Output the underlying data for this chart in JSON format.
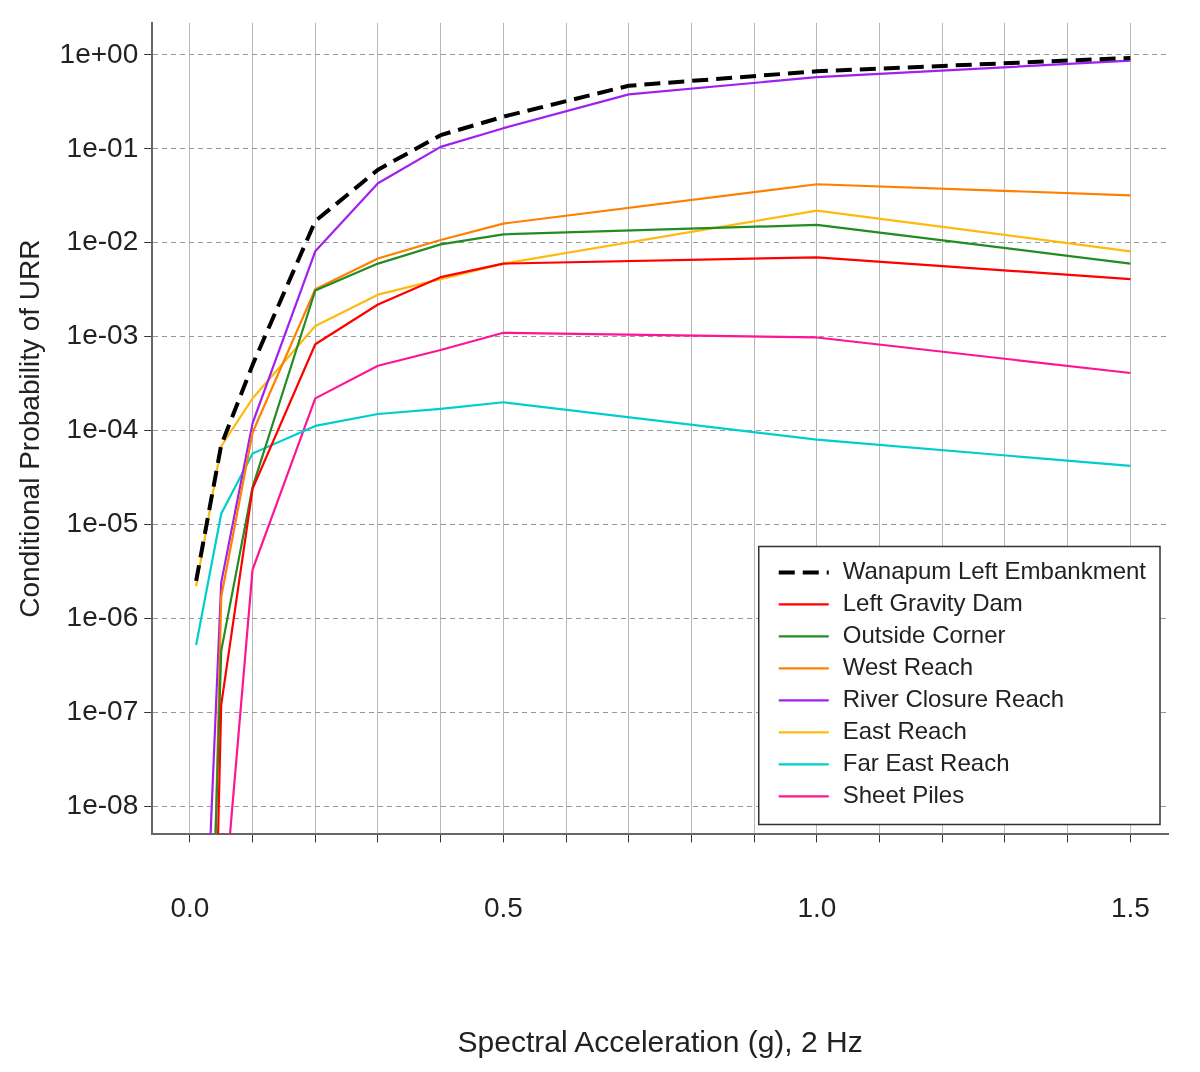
{
  "chart_data": {
    "type": "line",
    "xlabel": "Spectral Acceleration (g), 2 Hz",
    "ylabel": "Conditional Probability of URR",
    "log": "y",
    "grid": true,
    "legend": "bottom right",
    "marker": "none",
    "xlim": [
      -0.06,
      1.56
    ],
    "ylim": [
      5e-09,
      2.2
    ],
    "xticks": [
      {
        "value": 0,
        "label": "0.0"
      },
      {
        "value": 0.1,
        "label": null
      },
      {
        "value": 0.2,
        "label": null
      },
      {
        "value": 0.3,
        "label": null
      },
      {
        "value": 0.4,
        "label": null
      },
      {
        "value": 0.5,
        "label": "0.5"
      },
      {
        "value": 0.6,
        "label": null
      },
      {
        "value": 0.7,
        "label": null
      },
      {
        "value": 0.8,
        "label": null
      },
      {
        "value": 0.9,
        "label": null
      },
      {
        "value": 1,
        "label": "1.0"
      },
      {
        "value": 1.1,
        "label": null
      },
      {
        "value": 1.2,
        "label": null
      },
      {
        "value": 1.3,
        "label": null
      },
      {
        "value": 1.4,
        "label": null
      },
      {
        "value": 1.5,
        "label": "1.5"
      }
    ],
    "yticks": [
      {
        "value": 1e-08,
        "label": "1e-08"
      },
      {
        "value": 1e-07,
        "label": "1e-07"
      },
      {
        "value": 1e-06,
        "label": "1e-06"
      },
      {
        "value": 1e-05,
        "label": "1e-05"
      },
      {
        "value": 0.0001,
        "label": "1e-04"
      },
      {
        "value": 0.001,
        "label": "1e-03"
      },
      {
        "value": 0.01,
        "label": "1e-02"
      },
      {
        "value": 0.1,
        "label": "1e-01"
      },
      {
        "value": 1,
        "label": "1e+00"
      }
    ],
    "series": [
      {
        "name": "Wanapum Left Embankment",
        "color": "#000000",
        "line_style": "dashed",
        "x": [
          0.01,
          0.05,
          0.1,
          0.2,
          0.3,
          0.4,
          0.5,
          0.7,
          1.0,
          1.5
        ],
        "values": [
          2.5e-06,
          7e-05,
          0.0005,
          0.017,
          0.06,
          0.14,
          0.22,
          0.47,
          0.67,
          0.93
        ]
      },
      {
        "name": "Left Gravity Dam",
        "color": "#ff0000",
        "x": [
          0.045,
          0.05,
          0.1,
          0.2,
          0.3,
          0.4,
          0.5,
          1.0,
          1.5
        ],
        "values": [
          5e-09,
          1.2e-07,
          2.4e-05,
          0.00083,
          0.0022,
          0.0043,
          0.006,
          0.007,
          0.0041
        ]
      },
      {
        "name": "Outside Corner",
        "color": "#228b22",
        "x": [
          0.041,
          0.05,
          0.1,
          0.2,
          0.3,
          0.4,
          0.5,
          1.0,
          1.5
        ],
        "values": [
          5e-09,
          4.5e-07,
          2.5e-05,
          0.0031,
          0.006,
          0.0096,
          0.0123,
          0.0155,
          0.006
        ]
      },
      {
        "name": "West Reach",
        "color": "#ff7f00",
        "x": [
          0.041,
          0.05,
          0.1,
          0.2,
          0.3,
          0.4,
          0.5,
          1.0,
          1.5
        ],
        "values": [
          5e-09,
          1.7e-06,
          9.5e-05,
          0.0032,
          0.0068,
          0.0107,
          0.016,
          0.042,
          0.032
        ]
      },
      {
        "name": "River Closure Reach",
        "color": "#a020f0",
        "x": [
          0.033,
          0.05,
          0.1,
          0.2,
          0.3,
          0.4,
          0.5,
          0.7,
          1.0,
          1.5
        ],
        "values": [
          5e-09,
          2.4e-06,
          0.00012,
          0.0081,
          0.043,
          0.105,
          0.166,
          0.38,
          0.58,
          0.87
        ]
      },
      {
        "name": "East Reach",
        "color": "#ffb90f",
        "x": [
          0.01,
          0.05,
          0.1,
          0.2,
          0.3,
          0.4,
          0.5,
          1.0,
          1.5
        ],
        "values": [
          2.2e-06,
          6.8e-05,
          0.00022,
          0.0013,
          0.0028,
          0.0041,
          0.006,
          0.022,
          0.0081
        ]
      },
      {
        "name": "Far East Reach",
        "color": "#00cdcd",
        "x": [
          0.01,
          0.05,
          0.1,
          0.2,
          0.3,
          0.4,
          0.5,
          1.0,
          1.5
        ],
        "values": [
          5.2e-07,
          1.3e-05,
          5.7e-05,
          0.000112,
          0.00015,
          0.00017,
          0.0002,
          8e-05,
          4.2e-05
        ]
      },
      {
        "name": "Sheet Piles",
        "color": "#ff1493",
        "x": [
          0.064,
          0.1,
          0.2,
          0.3,
          0.4,
          0.5,
          1.0,
          1.5
        ],
        "values": [
          5e-09,
          3.3e-06,
          0.00022,
          0.00049,
          0.00072,
          0.0011,
          0.00098,
          0.00041
        ]
      }
    ]
  }
}
